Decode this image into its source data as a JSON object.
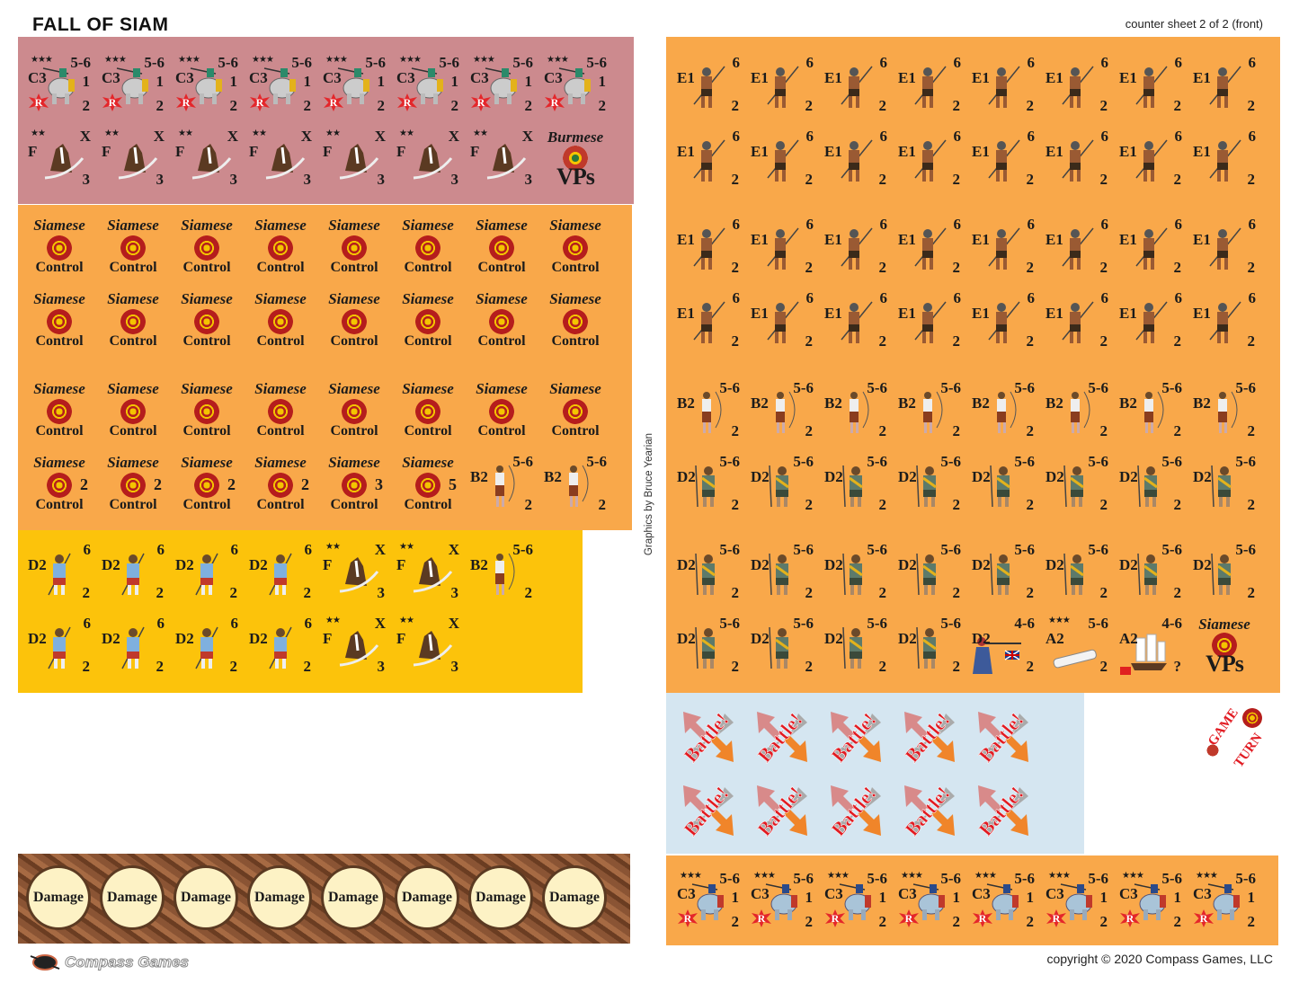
{
  "header": {
    "title": "FALL OF SIAM",
    "sheet_label": "counter sheet 2 of 2 (front)"
  },
  "footer": {
    "copyright": "copyright © 2020 Compass Games, LLC",
    "logo_text": "Compass Games",
    "credits": "Graphics by Bruce Yearian"
  },
  "colors": {
    "pink": "#cc8a8e",
    "orange": "#f9a84a",
    "yellow": "#fcc30b",
    "light_blue": "#d5e6f1",
    "damage_brown": "#7a4a30",
    "battle_red": "#e11b22"
  },
  "counter_types": {
    "c3_elephant": {
      "icon": "war-elephant",
      "stars": "★★★",
      "unit": "C3",
      "tr": "5-6",
      "mr": "1",
      "br": "2",
      "badge": "R"
    },
    "c3_elephant_blue": {
      "icon": "war-elephant-blue",
      "stars": "★★★",
      "unit": "C3",
      "tr": "5-6",
      "mr": "1",
      "br": "2",
      "badge": "R"
    },
    "f_cavalry": {
      "icon": "horse-head-sword",
      "stars": "★★",
      "unit": "F",
      "tr": "X",
      "br": "3"
    },
    "burmese_vps": {
      "icon": "burmese-emblem",
      "top": "Burmese",
      "vps": "VPs"
    },
    "siamese_vps": {
      "icon": "siamese-rosette",
      "top": "Siamese",
      "vps": "VPs"
    },
    "siamese_control": {
      "icon": "siamese-rosette",
      "top": "Siamese",
      "bottom": "Control"
    },
    "siamese_control_2": {
      "icon": "siamese-rosette",
      "top": "Siamese",
      "bottom": "Control",
      "value": "2"
    },
    "siamese_control_3": {
      "icon": "siamese-rosette",
      "top": "Siamese",
      "bottom": "Control",
      "value": "3"
    },
    "siamese_control_5": {
      "icon": "siamese-rosette",
      "top": "Siamese",
      "bottom": "Control",
      "value": "5"
    },
    "b2_archer": {
      "icon": "archer",
      "unit": "B2",
      "tr": "5-6",
      "br": "2"
    },
    "e1_spearman": {
      "icon": "spearman",
      "unit": "E1",
      "tr": "6",
      "br": "2"
    },
    "d2_infantry": {
      "icon": "infantry-green",
      "unit": "D2",
      "tr": "5-6",
      "br": "2"
    },
    "d2_infantry_blue": {
      "icon": "infantry-blue",
      "unit": "D2",
      "tr": "6",
      "br": "2"
    },
    "d2_musketeer": {
      "icon": "musketeer-british-flag",
      "unit": "D2",
      "tr": "4-6",
      "br": "2"
    },
    "a2_cannon": {
      "icon": "cannon",
      "stars": "★★★",
      "unit": "A2",
      "tr": "5-6",
      "br": "2"
    },
    "a2_ship": {
      "icon": "sailing-ship-flag",
      "unit": "A2",
      "tr": "4-6",
      "br": "?"
    },
    "battle": {
      "icon": "battle-arrows",
      "label": "Battle!"
    },
    "game_turn": {
      "icon": "game-turn-marker",
      "word1": "GAME",
      "word2": "TURN"
    }
  },
  "sections": {
    "pink": {
      "rows": [
        [
          "c3_elephant",
          "c3_elephant",
          "c3_elephant",
          "c3_elephant",
          "c3_elephant",
          "c3_elephant",
          "c3_elephant",
          "c3_elephant"
        ],
        [
          "f_cavalry",
          "f_cavalry",
          "f_cavalry",
          "f_cavalry",
          "f_cavalry",
          "f_cavalry",
          "f_cavalry",
          "burmese_vps"
        ]
      ]
    },
    "orange_left": {
      "rows": [
        [
          "siamese_control",
          "siamese_control",
          "siamese_control",
          "siamese_control",
          "siamese_control",
          "siamese_control",
          "siamese_control",
          "siamese_control"
        ],
        [
          "siamese_control",
          "siamese_control",
          "siamese_control",
          "siamese_control",
          "siamese_control",
          "siamese_control",
          "siamese_control",
          "siamese_control"
        ],
        [
          "siamese_control",
          "siamese_control",
          "siamese_control",
          "siamese_control",
          "siamese_control",
          "siamese_control",
          "siamese_control",
          "siamese_control"
        ],
        [
          "siamese_control_2",
          "siamese_control_2",
          "siamese_control_2",
          "siamese_control_2",
          "siamese_control_3",
          "siamese_control_5",
          "b2_archer",
          "b2_archer"
        ]
      ]
    },
    "yellow": {
      "rows": [
        [
          "d2_infantry_blue",
          "d2_infantry_blue",
          "d2_infantry_blue",
          "d2_infantry_blue",
          "f_cavalry",
          "f_cavalry",
          "b2_archer"
        ],
        [
          "d2_infantry_blue",
          "d2_infantry_blue",
          "d2_infantry_blue",
          "d2_infantry_blue",
          "f_cavalry",
          "f_cavalry"
        ]
      ]
    },
    "orange_right": {
      "rows": [
        [
          "e1_spearman",
          "e1_spearman",
          "e1_spearman",
          "e1_spearman",
          "e1_spearman",
          "e1_spearman",
          "e1_spearman",
          "e1_spearman"
        ],
        [
          "e1_spearman",
          "e1_spearman",
          "e1_spearman",
          "e1_spearman",
          "e1_spearman",
          "e1_spearman",
          "e1_spearman",
          "e1_spearman"
        ],
        [
          "e1_spearman",
          "e1_spearman",
          "e1_spearman",
          "e1_spearman",
          "e1_spearman",
          "e1_spearman",
          "e1_spearman",
          "e1_spearman"
        ],
        [
          "e1_spearman",
          "e1_spearman",
          "e1_spearman",
          "e1_spearman",
          "e1_spearman",
          "e1_spearman",
          "e1_spearman",
          "e1_spearman"
        ],
        [
          "b2_archer",
          "b2_archer",
          "b2_archer",
          "b2_archer",
          "b2_archer",
          "b2_archer",
          "b2_archer",
          "b2_archer"
        ],
        [
          "d2_infantry",
          "d2_infantry",
          "d2_infantry",
          "d2_infantry",
          "d2_infantry",
          "d2_infantry",
          "d2_infantry",
          "d2_infantry"
        ],
        [
          "d2_infantry",
          "d2_infantry",
          "d2_infantry",
          "d2_infantry",
          "d2_infantry",
          "d2_infantry",
          "d2_infantry",
          "d2_infantry"
        ],
        [
          "d2_infantry",
          "d2_infantry",
          "d2_infantry",
          "d2_infantry",
          "d2_musketeer",
          "a2_cannon",
          "a2_ship",
          "siamese_vps"
        ]
      ]
    },
    "blue": {
      "rows": [
        [
          "battle",
          "battle",
          "battle",
          "battle",
          "battle"
        ],
        [
          "battle",
          "battle",
          "battle",
          "battle",
          "battle"
        ]
      ]
    },
    "orange_bottom": {
      "rows": [
        [
          "c3_elephant_blue",
          "c3_elephant_blue",
          "c3_elephant_blue",
          "c3_elephant_blue",
          "c3_elephant_blue",
          "c3_elephant_blue",
          "c3_elephant_blue",
          "c3_elephant_blue"
        ]
      ]
    },
    "damage": {
      "label": "Damage",
      "count": 8
    }
  }
}
